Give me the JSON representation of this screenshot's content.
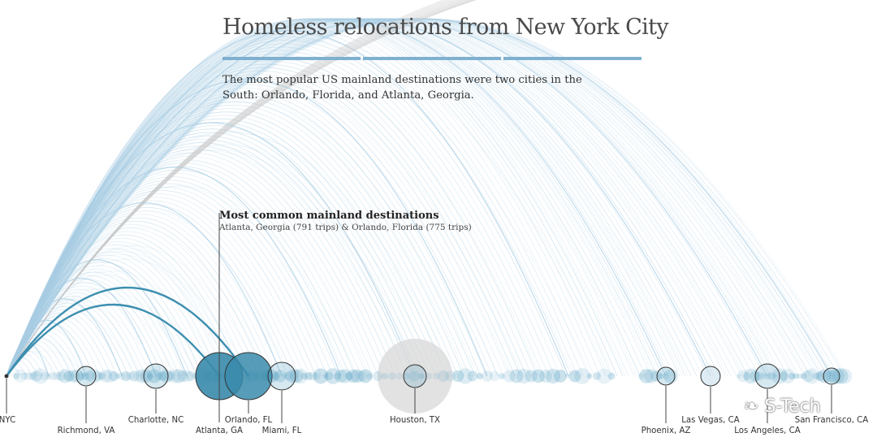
{
  "title": "Homeless relocations from New York City",
  "subtitle": "The most popular US mainland destinations were two cities in the South: Orlando, Florida, and Atlanta, Georgia.",
  "callout": {
    "title": "Most common mainland destinations",
    "text": "Atlanta, Georgia (791 trips) & Orlando, Florida (775 trips)"
  },
  "watermark": "S-Tech",
  "colors": {
    "accent": "#7fb0cf",
    "arc": "#a8cde3",
    "arc_grey": "#c8c8c8",
    "highlight_arc": "#3d8fb0",
    "bubble": "#5ba3c4",
    "highlight_bubble": "#3a8bab",
    "houston_halo": "#d8d8d8",
    "label_line": "#444444"
  },
  "chart_data": {
    "type": "arc",
    "origin": "NYC",
    "highlighted": [
      {
        "city": "Atlanta, GA",
        "trips": 791
      },
      {
        "city": "Orlando, FL",
        "trips": 775
      }
    ],
    "labeled_destinations": [
      "NYC",
      "Richmond, VA",
      "Charlotte, NC",
      "Atlanta, GA",
      "Orlando, FL",
      "Miami, FL",
      "Houston, TX",
      "Phoenix, AZ",
      "Las Vegas, CA",
      "Los Angeles, CA",
      "San Francisco, CA"
    ]
  }
}
